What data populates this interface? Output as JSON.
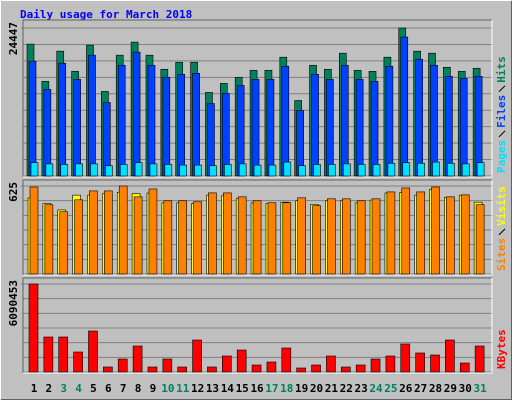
{
  "chart_data": [
    {
      "type": "bar",
      "title": "Daily usage for March 2018",
      "ylim": [
        0,
        24447
      ],
      "yticks": [
        24447
      ],
      "series": [
        {
          "name": "Hits",
          "color": "#00805c",
          "values": [
            21786,
            15633,
            20622,
            17296,
            21620,
            13970,
            19957,
            22119,
            19957,
            17629,
            18793,
            18793,
            13804,
            15300,
            16298,
            17462,
            17462,
            19624,
            12473,
            18294,
            17629,
            20290,
            17462,
            17296,
            19624,
            24447,
            20622,
            20290,
            17961,
            17296,
            17795
          ]
        },
        {
          "name": "Files",
          "color": "#0040ff",
          "values": [
            18960,
            14303,
            18627,
            15966,
            19957,
            12141,
            18294,
            20456,
            18294,
            16298,
            16797,
            16964,
            11974,
            13637,
            14968,
            15966,
            15966,
            18128,
            10810,
            16797,
            15966,
            18294,
            15966,
            15633,
            18128,
            22951,
            19292,
            18294,
            16465,
            16132,
            16465
          ]
        },
        {
          "name": "Pages",
          "color": "#00e0ff",
          "values": [
            2200,
            2000,
            1900,
            2000,
            2000,
            1700,
            1900,
            2200,
            2000,
            1900,
            1800,
            1800,
            1700,
            1900,
            2000,
            1800,
            1800,
            2300,
            1700,
            1900,
            1900,
            2000,
            1900,
            1900,
            2100,
            2200,
            2100,
            2300,
            2100,
            2000,
            2200
          ]
        }
      ]
    },
    {
      "type": "bar",
      "ylim": [
        0,
        625
      ],
      "yticks": [
        625
      ],
      "series": [
        {
          "name": "Visits",
          "color": "#ffff00",
          "values": [
            540,
            500,
            455,
            560,
            560,
            570,
            580,
            570,
            575,
            505,
            505,
            500,
            560,
            555,
            535,
            505,
            500,
            510,
            520,
            495,
            520,
            520,
            505,
            525,
            575,
            580,
            560,
            600,
            545,
            560,
            510
          ]
        },
        {
          "name": "Sites",
          "color": "#ff8000",
          "values": [
            618,
            492,
            442,
            527,
            590,
            590,
            625,
            548,
            604,
            520,
            520,
            513,
            576,
            576,
            548,
            520,
            506,
            506,
            541,
            485,
            534,
            534,
            520,
            534,
            583,
            611,
            583,
            618,
            548,
            562,
            492
          ]
        }
      ]
    },
    {
      "type": "bar",
      "ylim": [
        0,
        6090453
      ],
      "yticks": [
        6090453
      ],
      "categories": [
        "1",
        "2",
        "3",
        "4",
        "5",
        "6",
        "7",
        "8",
        "9",
        "10",
        "11",
        "12",
        "13",
        "14",
        "15",
        "16",
        "17",
        "18",
        "19",
        "20",
        "21",
        "22",
        "23",
        "24",
        "25",
        "26",
        "27",
        "28",
        "29",
        "30",
        "31"
      ],
      "label_colors": [
        "#000000",
        "#000000",
        "#00805c",
        "#00805c",
        "#000000",
        "#000000",
        "#000000",
        "#000000",
        "#000000",
        "#00805c",
        "#00805c",
        "#000000",
        "#000000",
        "#000000",
        "#000000",
        "#000000",
        "#00805c",
        "#00805c",
        "#000000",
        "#000000",
        "#000000",
        "#000000",
        "#000000",
        "#00805c",
        "#00805c",
        "#000000",
        "#000000",
        "#000000",
        "#000000",
        "#000000",
        "#00805c"
      ],
      "series": [
        {
          "name": "KBytes",
          "color": "#ff0000",
          "values": [
            6090453,
            2422350,
            2422350,
            1384200,
            2837610,
            346050,
            899730,
            1799460,
            346050,
            899730,
            346050,
            2214720,
            346050,
            1107360,
            1522620,
            484470,
            692100,
            1661040,
            276840,
            484470,
            1107360,
            346050,
            484470,
            899730,
            1107360,
            1937880,
            1314990,
            1176570,
            2214720,
            622890,
            1799460
          ]
        }
      ]
    }
  ]
}
